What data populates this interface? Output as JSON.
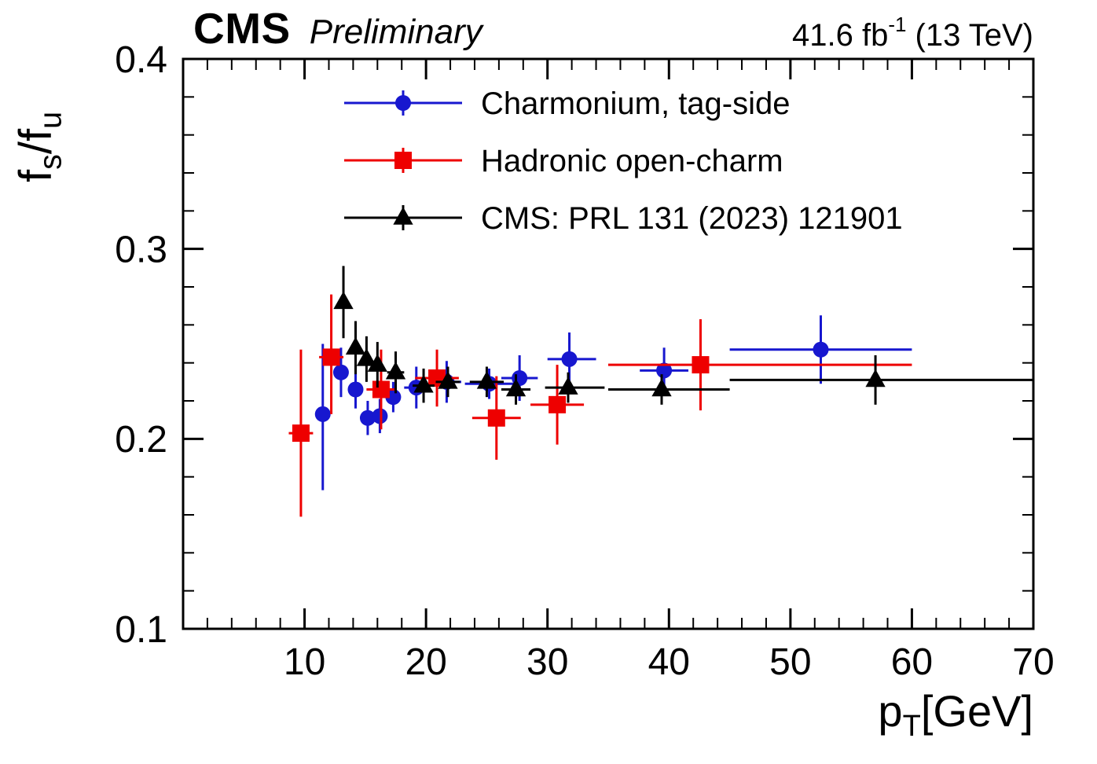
{
  "header": {
    "experiment": "CMS",
    "label": "Preliminary",
    "lumi_prefix": "41.6 fb",
    "lumi_sup": "-1",
    "lumi_suffix": " (13 TeV)"
  },
  "axes": {
    "y_base1": "f",
    "y_sub1": "s",
    "y_base2": "/f",
    "y_sub2": "u",
    "x_base": "p",
    "x_sub": "T",
    "x_suffix": "[GeV]"
  },
  "chart_data": {
    "type": "scatter",
    "title": "CMS Preliminary 41.6 fb-1 (13 TeV)",
    "xlabel": "p_T [GeV]",
    "ylabel": "f_s/f_u",
    "xlim": [
      0,
      70
    ],
    "ylim": [
      0.1,
      0.4
    ],
    "grid": false,
    "legend_position": "top-center-inside",
    "x_ticks": {
      "values": [
        10,
        20,
        30,
        40,
        50,
        60,
        70
      ],
      "labels": [
        "10",
        "20",
        "30",
        "40",
        "50",
        "60",
        "70"
      ],
      "minor_step": 2
    },
    "y_ticks": {
      "values": [
        0.1,
        0.2,
        0.3,
        0.4
      ],
      "labels": [
        "0.1",
        "0.2",
        "0.3",
        "0.4"
      ],
      "minor_step": 0.02
    },
    "series": [
      {
        "name": "Charmonium, tag-side",
        "marker": "circle",
        "color": "#1717cf",
        "points": [
          {
            "x": 11.5,
            "exl": 0.5,
            "exh": 0.5,
            "y": 0.213,
            "eyl": 0.04,
            "eyh": 0.037
          },
          {
            "x": 13.0,
            "exl": 0.5,
            "exh": 0.5,
            "y": 0.235,
            "eyl": 0.013,
            "eyh": 0.013
          },
          {
            "x": 14.2,
            "exl": 0.5,
            "exh": 0.5,
            "y": 0.226,
            "eyl": 0.01,
            "eyh": 0.01
          },
          {
            "x": 15.2,
            "exl": 0.5,
            "exh": 0.5,
            "y": 0.211,
            "eyl": 0.009,
            "eyh": 0.009
          },
          {
            "x": 16.2,
            "exl": 0.5,
            "exh": 0.5,
            "y": 0.212,
            "eyl": 0.009,
            "eyh": 0.009
          },
          {
            "x": 17.3,
            "exl": 0.6,
            "exh": 0.6,
            "y": 0.222,
            "eyl": 0.008,
            "eyh": 0.008
          },
          {
            "x": 19.2,
            "exl": 1.0,
            "exh": 1.0,
            "y": 0.227,
            "eyl": 0.011,
            "eyh": 0.011
          },
          {
            "x": 21.7,
            "exl": 1.2,
            "exh": 1.2,
            "y": 0.23,
            "eyl": 0.011,
            "eyh": 0.011
          },
          {
            "x": 25.2,
            "exl": 2.0,
            "exh": 2.0,
            "y": 0.229,
            "eyl": 0.008,
            "eyh": 0.008
          },
          {
            "x": 27.7,
            "exl": 1.5,
            "exh": 1.5,
            "y": 0.232,
            "eyl": 0.012,
            "eyh": 0.012
          },
          {
            "x": 31.8,
            "exl": 1.8,
            "exh": 2.2,
            "y": 0.242,
            "eyl": 0.014,
            "eyh": 0.014
          },
          {
            "x": 39.6,
            "exl": 2.0,
            "exh": 2.0,
            "y": 0.236,
            "eyl": 0.012,
            "eyh": 0.012
          },
          {
            "x": 52.5,
            "exl": 7.5,
            "exh": 7.5,
            "y": 0.247,
            "eyl": 0.018,
            "eyh": 0.018
          }
        ]
      },
      {
        "name": "Hadronic open-charm",
        "marker": "square",
        "color": "#ee0000",
        "points": [
          {
            "x": 9.7,
            "exl": 1.0,
            "exh": 1.0,
            "y": 0.203,
            "eyl": 0.044,
            "eyh": 0.044
          },
          {
            "x": 12.2,
            "exl": 1.0,
            "exh": 1.0,
            "y": 0.243,
            "eyl": 0.03,
            "eyh": 0.033
          },
          {
            "x": 16.3,
            "exl": 1.2,
            "exh": 1.2,
            "y": 0.226,
            "eyl": 0.021,
            "eyh": 0.021
          },
          {
            "x": 20.9,
            "exl": 1.8,
            "exh": 1.8,
            "y": 0.232,
            "eyl": 0.015,
            "eyh": 0.015
          },
          {
            "x": 25.8,
            "exl": 2.0,
            "exh": 2.0,
            "y": 0.211,
            "eyl": 0.022,
            "eyh": 0.022
          },
          {
            "x": 30.8,
            "exl": 2.2,
            "exh": 2.2,
            "y": 0.218,
            "eyl": 0.021,
            "eyh": 0.021
          },
          {
            "x": 42.6,
            "exl": 7.6,
            "exh": 17.4,
            "y": 0.239,
            "eyl": 0.024,
            "eyh": 0.024
          }
        ]
      },
      {
        "name": "CMS: PRL 131 (2023) 121901",
        "marker": "triangle",
        "color": "#000000",
        "points": [
          {
            "x": 13.2,
            "exl": 0.4,
            "exh": 0.4,
            "y": 0.272,
            "eyl": 0.019,
            "eyh": 0.019
          },
          {
            "x": 14.2,
            "exl": 0.4,
            "exh": 0.4,
            "y": 0.248,
            "eyl": 0.014,
            "eyh": 0.014
          },
          {
            "x": 15.1,
            "exl": 0.4,
            "exh": 0.4,
            "y": 0.242,
            "eyl": 0.012,
            "eyh": 0.012
          },
          {
            "x": 16.0,
            "exl": 0.4,
            "exh": 0.4,
            "y": 0.239,
            "eyl": 0.012,
            "eyh": 0.012
          },
          {
            "x": 17.5,
            "exl": 0.7,
            "exh": 0.7,
            "y": 0.235,
            "eyl": 0.011,
            "eyh": 0.011
          },
          {
            "x": 19.8,
            "exl": 0.9,
            "exh": 0.9,
            "y": 0.228,
            "eyl": 0.009,
            "eyh": 0.009
          },
          {
            "x": 21.8,
            "exl": 1.0,
            "exh": 1.0,
            "y": 0.23,
            "eyl": 0.008,
            "eyh": 0.008
          },
          {
            "x": 25.0,
            "exl": 1.4,
            "exh": 1.4,
            "y": 0.23,
            "eyl": 0.008,
            "eyh": 0.008
          },
          {
            "x": 27.4,
            "exl": 1.2,
            "exh": 1.2,
            "y": 0.226,
            "eyl": 0.008,
            "eyh": 0.008
          },
          {
            "x": 31.7,
            "exl": 1.9,
            "exh": 3.0,
            "y": 0.227,
            "eyl": 0.008,
            "eyh": 0.008
          },
          {
            "x": 39.4,
            "exl": 4.4,
            "exh": 5.6,
            "y": 0.226,
            "eyl": 0.008,
            "eyh": 0.008
          },
          {
            "x": 57.0,
            "exl": 12.0,
            "exh": 13.0,
            "y": 0.231,
            "eyl": 0.013,
            "eyh": 0.013
          }
        ]
      }
    ]
  }
}
